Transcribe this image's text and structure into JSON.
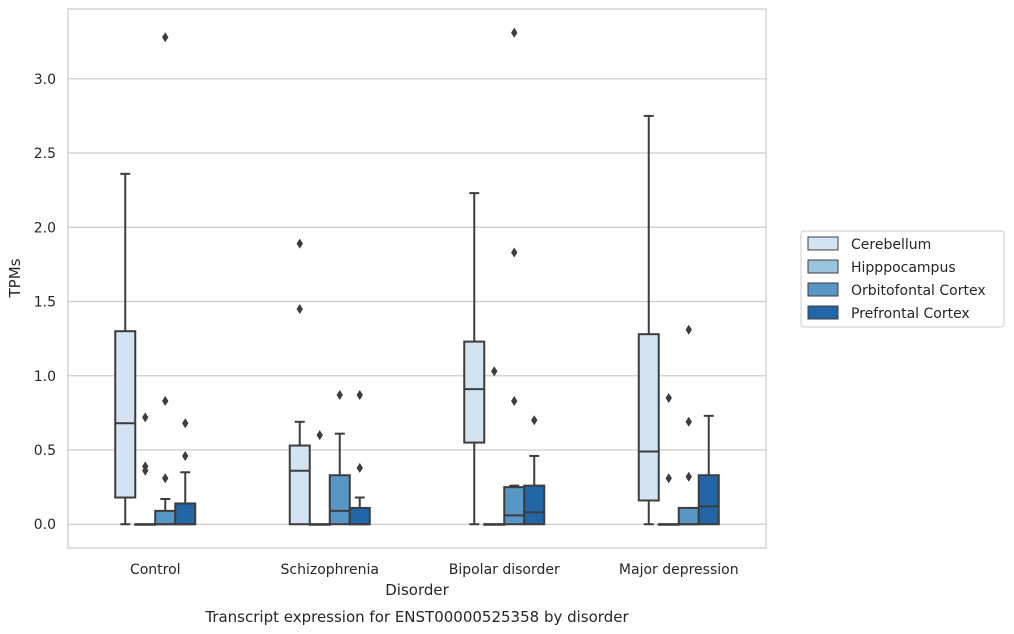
{
  "caption": "Transcript expression for ENST00000525358 by disorder",
  "chart_data": {
    "type": "box",
    "xlabel": "Disorder",
    "ylabel": "TPMs",
    "ylim": [
      -0.16,
      3.47
    ],
    "yticks": [
      0.0,
      0.5,
      1.0,
      1.5,
      2.0,
      2.5,
      3.0
    ],
    "ytick_labels": [
      "0.0",
      "0.5",
      "1.0",
      "1.5",
      "2.0",
      "2.5",
      "3.0"
    ],
    "grid": "horizontal",
    "legend_position": "right",
    "categories": [
      "Control",
      "Schizophrenia",
      "Bipolar disorder",
      "Major depression"
    ],
    "series": [
      {
        "name": "Cerebellum",
        "color": "#d4e3f1",
        "boxes": [
          {
            "whisker_low": 0.0,
            "q1": 0.18,
            "median": 0.68,
            "q3": 1.3,
            "whisker_high": 2.36,
            "outliers": []
          },
          {
            "whisker_low": 0.0,
            "q1": 0.0,
            "median": 0.36,
            "q3": 0.53,
            "whisker_high": 0.69,
            "outliers": [
              1.89,
              1.45
            ]
          },
          {
            "whisker_low": 0.0,
            "q1": 0.55,
            "median": 0.91,
            "q3": 1.23,
            "whisker_high": 2.23,
            "outliers": []
          },
          {
            "whisker_low": 0.0,
            "q1": 0.16,
            "median": 0.49,
            "q3": 1.28,
            "whisker_high": 2.75,
            "outliers": []
          }
        ]
      },
      {
        "name": "Hipppocampus",
        "color": "#9ac3dd",
        "boxes": [
          {
            "whisker_low": 0.0,
            "q1": 0.0,
            "median": 0.0,
            "q3": 0.0,
            "whisker_high": 0.0,
            "outliers": [
              0.72,
              0.39,
              0.36
            ]
          },
          {
            "whisker_low": 0.0,
            "q1": 0.0,
            "median": 0.0,
            "q3": 0.0,
            "whisker_high": 0.0,
            "outliers": [
              0.6
            ]
          },
          {
            "whisker_low": 0.0,
            "q1": 0.0,
            "median": 0.0,
            "q3": 0.0,
            "whisker_high": 0.0,
            "outliers": [
              1.03
            ]
          },
          {
            "whisker_low": 0.0,
            "q1": 0.0,
            "median": 0.0,
            "q3": 0.0,
            "whisker_high": 0.0,
            "outliers": [
              0.85,
              0.31
            ]
          }
        ]
      },
      {
        "name": "Orbitofontal Cortex",
        "color": "#5796c5",
        "boxes": [
          {
            "whisker_low": 0.0,
            "q1": 0.0,
            "median": 0.0,
            "q3": 0.09,
            "whisker_high": 0.17,
            "outliers": [
              3.28,
              0.83,
              0.31
            ]
          },
          {
            "whisker_low": 0.0,
            "q1": 0.0,
            "median": 0.09,
            "q3": 0.33,
            "whisker_high": 0.61,
            "outliers": [
              0.87
            ]
          },
          {
            "whisker_low": 0.0,
            "q1": 0.0,
            "median": 0.06,
            "q3": 0.25,
            "whisker_high": 0.26,
            "outliers": [
              3.31,
              1.83,
              0.83
            ]
          },
          {
            "whisker_low": 0.0,
            "q1": 0.0,
            "median": 0.0,
            "q3": 0.11,
            "whisker_high": 0.11,
            "outliers": [
              1.31,
              0.69,
              0.32
            ]
          }
        ]
      },
      {
        "name": "Prefrontal Cortex",
        "color": "#2366a8",
        "boxes": [
          {
            "whisker_low": 0.0,
            "q1": 0.0,
            "median": 0.0,
            "q3": 0.14,
            "whisker_high": 0.35,
            "outliers": [
              0.68,
              0.46
            ]
          },
          {
            "whisker_low": 0.0,
            "q1": 0.0,
            "median": 0.0,
            "q3": 0.11,
            "whisker_high": 0.18,
            "outliers": [
              0.87,
              0.38
            ]
          },
          {
            "whisker_low": 0.0,
            "q1": 0.0,
            "median": 0.08,
            "q3": 0.26,
            "whisker_high": 0.46,
            "outliers": [
              0.7
            ]
          },
          {
            "whisker_low": 0.0,
            "q1": 0.0,
            "median": 0.12,
            "q3": 0.33,
            "whisker_high": 0.73,
            "outliers": []
          }
        ]
      }
    ]
  }
}
